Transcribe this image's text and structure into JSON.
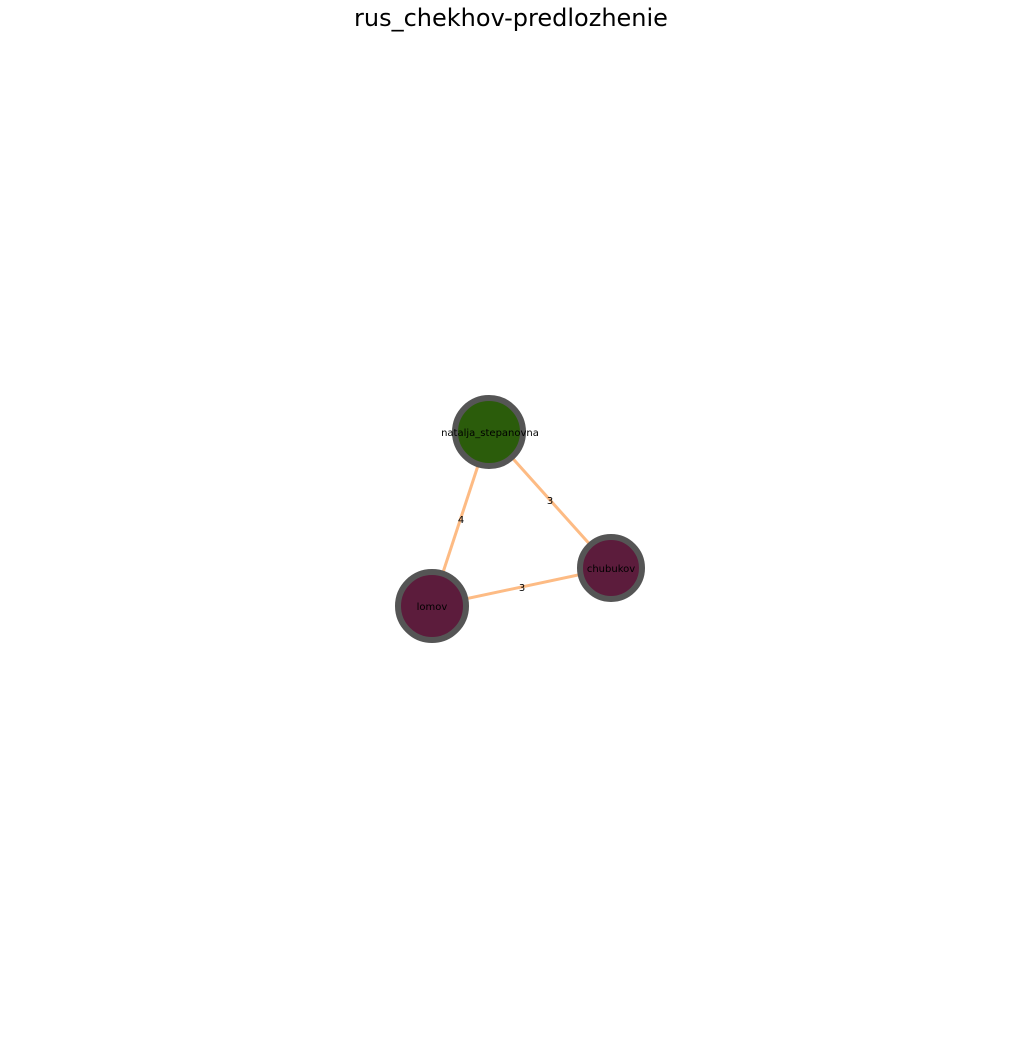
{
  "title": "rus_chekhov-predlozhenie",
  "colors": {
    "edge": "#fdbb84",
    "node_border": "#555555",
    "node_group_a": "#2b5c0b",
    "node_group_b": "#5c1c3c"
  },
  "graph": {
    "nodes": [
      {
        "id": "natalja_stepanovna",
        "label": "natalja_stepanovna",
        "color": "#2b5c0b"
      },
      {
        "id": "chubukov",
        "label": "chubukov",
        "color": "#5c1c3c"
      },
      {
        "id": "lomov",
        "label": "lomov",
        "color": "#5c1c3c"
      }
    ],
    "edges": [
      {
        "source": "natalja_stepanovna",
        "target": "lomov",
        "label": "4"
      },
      {
        "source": "natalja_stepanovna",
        "target": "chubukov",
        "label": "3"
      },
      {
        "source": "lomov",
        "target": "chubukov",
        "label": "3"
      }
    ]
  }
}
